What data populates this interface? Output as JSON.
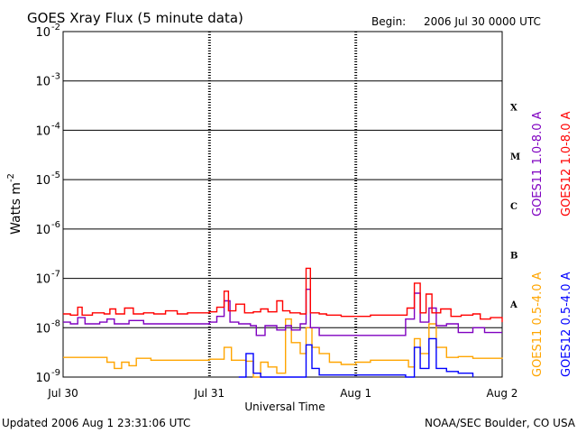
{
  "chart_data": {
    "type": "line",
    "title": "GOES Xray Flux (5 minute data)",
    "begin_label": "Begin:",
    "begin_value": "2006 Jul 30 0000 UTC",
    "ylabel": "Watts m",
    "ylabel_sup": "-2",
    "xlabel": "Universal Time",
    "y_scale": "log",
    "ylim": [
      1e-09,
      0.01
    ],
    "y_ticks": [
      {
        "base": "10",
        "exp": "-2",
        "value": 0.01
      },
      {
        "base": "10",
        "exp": "-3",
        "value": 0.001
      },
      {
        "base": "10",
        "exp": "-4",
        "value": 0.0001
      },
      {
        "base": "10",
        "exp": "-5",
        "value": 1e-05
      },
      {
        "base": "10",
        "exp": "-6",
        "value": 1e-06
      },
      {
        "base": "10",
        "exp": "-7",
        "value": 1e-07
      },
      {
        "base": "10",
        "exp": "-8",
        "value": 1e-08
      },
      {
        "base": "10",
        "exp": "-9",
        "value": 1e-09
      }
    ],
    "xlim": [
      0,
      3
    ],
    "x_ticks": [
      {
        "label": "Jul 30",
        "value": 0
      },
      {
        "label": "Jul 31",
        "value": 1
      },
      {
        "label": "Aug 1",
        "value": 2
      },
      {
        "label": "Aug 2",
        "value": 3
      }
    ],
    "flare_classes": [
      {
        "label": "X",
        "value": 0.0003
      },
      {
        "label": "M",
        "value": 3e-05
      },
      {
        "label": "C",
        "value": 3e-06
      },
      {
        "label": "B",
        "value": 3e-07
      },
      {
        "label": "A",
        "value": 3e-08
      }
    ],
    "grid": "horizontal solid at each decade, dashed verticals at day boundaries",
    "series": [
      {
        "name": "GOES12 1.0-8.0 A",
        "color": "#ff0000",
        "points": [
          [
            0.0,
            1.9e-08
          ],
          [
            0.05,
            1.8e-08
          ],
          [
            0.1,
            2.6e-08
          ],
          [
            0.13,
            1.8e-08
          ],
          [
            0.2,
            2e-08
          ],
          [
            0.28,
            1.9e-08
          ],
          [
            0.32,
            2.4e-08
          ],
          [
            0.36,
            1.9e-08
          ],
          [
            0.42,
            2.5e-08
          ],
          [
            0.48,
            1.9e-08
          ],
          [
            0.55,
            2e-08
          ],
          [
            0.62,
            1.9e-08
          ],
          [
            0.7,
            2.2e-08
          ],
          [
            0.78,
            1.9e-08
          ],
          [
            0.85,
            2e-08
          ],
          [
            0.92,
            2e-08
          ],
          [
            1.0,
            2.1e-08
          ],
          [
            1.05,
            2.6e-08
          ],
          [
            1.1,
            5.5e-08
          ],
          [
            1.13,
            2.2e-08
          ],
          [
            1.18,
            3e-08
          ],
          [
            1.24,
            2e-08
          ],
          [
            1.3,
            2.1e-08
          ],
          [
            1.35,
            2.4e-08
          ],
          [
            1.4,
            2.1e-08
          ],
          [
            1.46,
            3.5e-08
          ],
          [
            1.5,
            2.2e-08
          ],
          [
            1.55,
            2e-08
          ],
          [
            1.62,
            1.9e-08
          ],
          [
            1.66,
            1.6e-07
          ],
          [
            1.69,
            2e-08
          ],
          [
            1.75,
            1.9e-08
          ],
          [
            1.8,
            1.8e-08
          ],
          [
            1.9,
            1.7e-08
          ],
          [
            2.0,
            1.7e-08
          ],
          [
            2.1,
            1.8e-08
          ],
          [
            2.2,
            1.8e-08
          ],
          [
            2.3,
            1.8e-08
          ],
          [
            2.35,
            2.5e-08
          ],
          [
            2.4,
            8e-08
          ],
          [
            2.44,
            2e-08
          ],
          [
            2.48,
            4.8e-08
          ],
          [
            2.52,
            2e-08
          ],
          [
            2.58,
            2.4e-08
          ],
          [
            2.65,
            1.7e-08
          ],
          [
            2.72,
            1.8e-08
          ],
          [
            2.8,
            1.9e-08
          ],
          [
            2.85,
            1.5e-08
          ],
          [
            2.92,
            1.6e-08
          ],
          [
            3.0,
            1.3e-08
          ]
        ]
      },
      {
        "name": "GOES11 1.0-8.0 A",
        "color": "#7f00c0",
        "points": [
          [
            0.0,
            1.3e-08
          ],
          [
            0.05,
            1.2e-08
          ],
          [
            0.1,
            1.6e-08
          ],
          [
            0.15,
            1.2e-08
          ],
          [
            0.25,
            1.3e-08
          ],
          [
            0.3,
            1.5e-08
          ],
          [
            0.35,
            1.2e-08
          ],
          [
            0.45,
            1.4e-08
          ],
          [
            0.55,
            1.2e-08
          ],
          [
            0.65,
            1.2e-08
          ],
          [
            0.75,
            1.2e-08
          ],
          [
            0.9,
            1.2e-08
          ],
          [
            1.0,
            1.3e-08
          ],
          [
            1.05,
            1.7e-08
          ],
          [
            1.1,
            3.5e-08
          ],
          [
            1.14,
            1.3e-08
          ],
          [
            1.2,
            1.2e-08
          ],
          [
            1.28,
            1.1e-08
          ],
          [
            1.32,
            7e-09
          ],
          [
            1.38,
            1.1e-08
          ],
          [
            1.46,
            9e-09
          ],
          [
            1.52,
            1.1e-08
          ],
          [
            1.56,
            9e-09
          ],
          [
            1.62,
            1.2e-08
          ],
          [
            1.66,
            6e-08
          ],
          [
            1.69,
            1e-08
          ],
          [
            1.75,
            7e-09
          ],
          [
            1.85,
            7e-09
          ],
          [
            2.0,
            7e-09
          ],
          [
            2.2,
            7e-09
          ],
          [
            2.3,
            7e-09
          ],
          [
            2.34,
            1.5e-08
          ],
          [
            2.4,
            5e-08
          ],
          [
            2.44,
            1.3e-08
          ],
          [
            2.5,
            2.5e-08
          ],
          [
            2.55,
            1.1e-08
          ],
          [
            2.62,
            1.2e-08
          ],
          [
            2.7,
            8e-09
          ],
          [
            2.8,
            1e-08
          ],
          [
            2.88,
            8e-09
          ],
          [
            3.0,
            8e-09
          ]
        ]
      },
      {
        "name": "GOES11 0.5-4.0 A",
        "color": "#ffa500",
        "points": [
          [
            0.0,
            2.5e-09
          ],
          [
            0.2,
            2.5e-09
          ],
          [
            0.3,
            2e-09
          ],
          [
            0.35,
            1.5e-09
          ],
          [
            0.4,
            2e-09
          ],
          [
            0.45,
            1.7e-09
          ],
          [
            0.5,
            2.4e-09
          ],
          [
            0.6,
            2.2e-09
          ],
          [
            0.8,
            2.2e-09
          ],
          [
            0.95,
            2.2e-09
          ],
          [
            1.0,
            2.3e-09
          ],
          [
            1.05,
            2.3e-09
          ],
          [
            1.1,
            4e-09
          ],
          [
            1.15,
            2.2e-09
          ],
          [
            1.25,
            2.1e-09
          ],
          [
            1.3,
            1e-09
          ],
          [
            1.35,
            2e-09
          ],
          [
            1.4,
            1.6e-09
          ],
          [
            1.46,
            1.2e-09
          ],
          [
            1.52,
            1.5e-08
          ],
          [
            1.56,
            5e-09
          ],
          [
            1.62,
            3e-09
          ],
          [
            1.66,
            1e-08
          ],
          [
            1.7,
            4e-09
          ],
          [
            1.75,
            3e-09
          ],
          [
            1.82,
            2e-09
          ],
          [
            1.9,
            1.8e-09
          ],
          [
            2.0,
            2e-09
          ],
          [
            2.1,
            2.2e-09
          ],
          [
            2.2,
            2.2e-09
          ],
          [
            2.3,
            2.2e-09
          ],
          [
            2.36,
            1.6e-09
          ],
          [
            2.4,
            6e-09
          ],
          [
            2.44,
            3e-09
          ],
          [
            2.5,
            1.2e-08
          ],
          [
            2.55,
            4e-09
          ],
          [
            2.62,
            2.5e-09
          ],
          [
            2.7,
            2.6e-09
          ],
          [
            2.8,
            2.4e-09
          ],
          [
            3.0,
            2.5e-09
          ]
        ]
      },
      {
        "name": "GOES12 0.5-4.0 A",
        "color": "#0000ff",
        "points": [
          [
            1.2,
            1e-09
          ],
          [
            1.25,
            3e-09
          ],
          [
            1.3,
            1.2e-09
          ],
          [
            1.35,
            1e-09
          ],
          [
            1.62,
            1e-09
          ],
          [
            1.66,
            4.5e-09
          ],
          [
            1.7,
            1.5e-09
          ],
          [
            1.75,
            1.1e-09
          ],
          [
            2.34,
            1e-09
          ],
          [
            2.4,
            4e-09
          ],
          [
            2.44,
            1.5e-09
          ],
          [
            2.5,
            6e-09
          ],
          [
            2.55,
            1.5e-09
          ],
          [
            2.62,
            1.3e-09
          ],
          [
            2.7,
            1.2e-09
          ],
          [
            2.8,
            1e-09
          ]
        ]
      }
    ]
  },
  "footer": {
    "updated": "Updated 2006 Aug  1 23:31:06 UTC",
    "credit": "NOAA/SEC Boulder, CO USA"
  }
}
